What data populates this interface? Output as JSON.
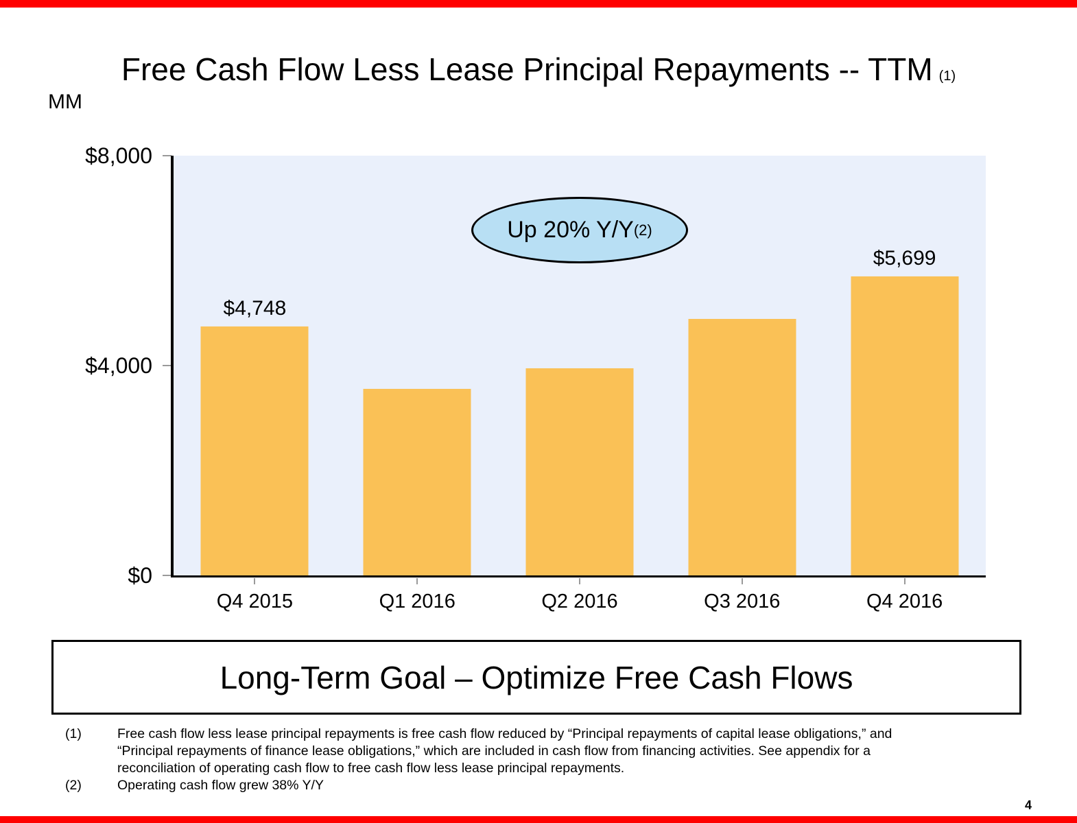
{
  "slide": {
    "title": "Free Cash Flow Less Lease Principal Repayments -- TTM",
    "title_superscript": "(1)",
    "units_label": "MM",
    "page_number": "4",
    "accent_bar_color": "#FF0000"
  },
  "chart_data": {
    "type": "bar",
    "title": "Free Cash Flow Less Lease Principal Repayments -- TTM",
    "units": "MM",
    "categories": [
      "Q4 2015",
      "Q1 2016",
      "Q2 2016",
      "Q3 2016",
      "Q4 2016"
    ],
    "values": [
      4748,
      3550,
      3950,
      4890,
      5699
    ],
    "data_labels": [
      "$4,748",
      "",
      "",
      "",
      "$5,699"
    ],
    "xlabel": "",
    "ylabel": "MM",
    "ylim": [
      0,
      8000
    ],
    "yticks": [
      {
        "value": 0,
        "label": "$0"
      },
      {
        "value": 4000,
        "label": "$4,000"
      },
      {
        "value": 8000,
        "label": "$8,000"
      }
    ],
    "grid": false,
    "legend": false,
    "bar_color": "#FAC156",
    "plot_bg_color": "#EAF0FB",
    "annotation": {
      "text": "Up 20% Y/Y",
      "superscript": "(2)",
      "fill_color": "#B8DFF4",
      "shape": "ellipse"
    }
  },
  "goal_banner": {
    "text": "Long-Term Goal – Optimize Free Cash Flows"
  },
  "footnotes": [
    {
      "marker": "(1)",
      "lines": [
        "Free cash flow less lease principal repayments is free cash flow reduced by “Principal repayments of capital lease obligations,” and",
        "“Principal repayments of finance lease obligations,” which are included in cash flow from financing activities. See appendix for a",
        "reconciliation of operating cash flow to free cash flow less lease principal repayments."
      ]
    },
    {
      "marker": "(2)",
      "lines": [
        "Operating cash flow grew 38% Y/Y"
      ]
    }
  ]
}
